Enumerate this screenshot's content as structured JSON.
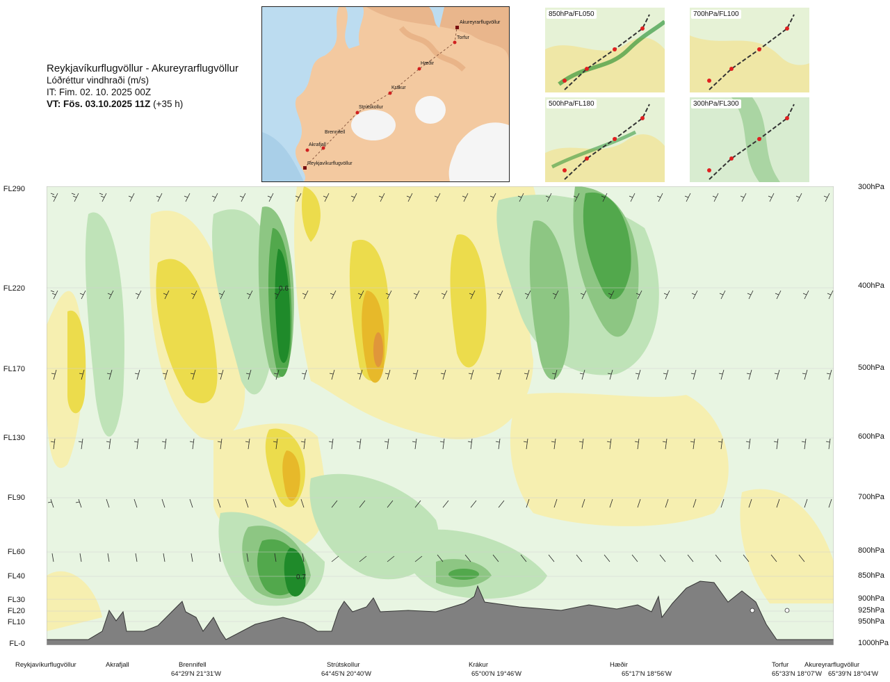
{
  "title": {
    "route": "Reykjavíkurflugvöllur - Akureyrarflugvöllur",
    "parameter": "Lóðréttur vindhraði (m/s)",
    "issue_time": "IT: Fim. 02. 10. 2025 00Z",
    "valid_time_bold": "VT: Fös. 03.10.2025 11Z",
    "valid_time_offset": "(+35 h)"
  },
  "route_map": {
    "waypoints": [
      "Akureyrarflugvöllur",
      "Torfur",
      "Hæðir",
      "Krákur",
      "Strútskollur",
      "Brennifell",
      "Akrafjall",
      "Reykjavíkurflugvöllur"
    ]
  },
  "thumbnails": [
    {
      "label": "850hPa/FL050"
    },
    {
      "label": "700hPa/FL100"
    },
    {
      "label": "500hPa/FL180"
    },
    {
      "label": "300hPa/FL300"
    }
  ],
  "left_levels": [
    "FL290",
    "FL220",
    "FL170",
    "FL130",
    "FL90",
    "FL60",
    "FL40",
    "FL30",
    "FL20",
    "FL10",
    "FL-0"
  ],
  "right_levels": [
    "300hPa",
    "400hPa",
    "500hPa",
    "600hPa",
    "700hPa",
    "800hPa",
    "850hPa",
    "900hPa",
    "925hPa",
    "950hPa",
    "1000hPa"
  ],
  "contour_labels": [
    "0.6",
    "0.7"
  ],
  "locations": [
    {
      "name": "Reykjavíkurflugvöllur",
      "coord": ""
    },
    {
      "name": "Akrafjall",
      "coord": ""
    },
    {
      "name": "Brennifell",
      "coord": "64°29'N 21°31'W"
    },
    {
      "name": "Strútskollur",
      "coord": "64°45'N 20°40'W"
    },
    {
      "name": "Krákur",
      "coord": "65°00'N 19°46'W"
    },
    {
      "name": "Hæðir",
      "coord": "65°17'N 18°56'W"
    },
    {
      "name": "Torfur",
      "coord": "65°33'N 18°07'W"
    },
    {
      "name": "Akureyrarflugvöllur",
      "coord": "65°39'N 18°04'W"
    }
  ],
  "colors": {
    "green_light": "#d6efd0",
    "green_mid": "#a9d5a2",
    "green_dark": "#5faf5a",
    "green_deep": "#1f8a2a",
    "yellow_light": "#f6f0b0",
    "yellow_mid": "#ecdc4c",
    "orange": "#e6a52a",
    "terrain": "#808080"
  }
}
